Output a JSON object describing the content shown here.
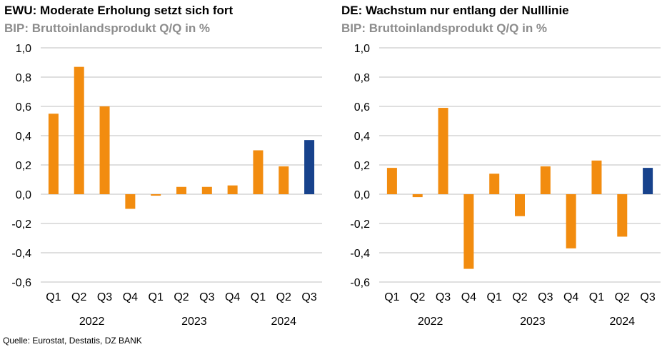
{
  "source": "Quelle: Eurostat, Destatis, DZ BANK",
  "colors": {
    "orange": "#F28C0F",
    "blue": "#17428C",
    "grid": "#BFBFBF"
  },
  "chart_data": [
    {
      "type": "bar",
      "title": "EWU: Moderate Erholung setzt sich fort",
      "subtitle": "BIP: Bruttoinlandsprodukt Q/Q in %",
      "categories": [
        "Q1",
        "Q2",
        "Q3",
        "Q4",
        "Q1",
        "Q2",
        "Q3",
        "Q4",
        "Q1",
        "Q2",
        "Q3"
      ],
      "years": [
        "2022",
        "2023",
        "2024"
      ],
      "values": [
        0.55,
        0.87,
        0.6,
        -0.1,
        -0.01,
        0.05,
        0.05,
        0.06,
        0.3,
        0.19,
        0.37
      ],
      "highlight_last": true,
      "ylim": [
        -0.6,
        1.0
      ],
      "yticks": [
        "1,0",
        "0,8",
        "0,6",
        "0,4",
        "0,2",
        "0,0",
        "-0,2",
        "-0,4",
        "-0,6"
      ],
      "grid": true
    },
    {
      "type": "bar",
      "title": "DE: Wachstum nur entlang der Nulllinie",
      "subtitle": "BIP: Bruttoinlandsprodukt Q/Q in %",
      "categories": [
        "Q1",
        "Q2",
        "Q3",
        "Q4",
        "Q1",
        "Q2",
        "Q3",
        "Q4",
        "Q1",
        "Q2",
        "Q3"
      ],
      "years": [
        "2022",
        "2023",
        "2024"
      ],
      "values": [
        0.18,
        -0.02,
        0.59,
        -0.51,
        0.14,
        -0.15,
        0.19,
        -0.37,
        0.23,
        -0.29,
        0.18
      ],
      "highlight_last": true,
      "ylim": [
        -0.6,
        1.0
      ],
      "yticks": [
        "1,0",
        "0,8",
        "0,6",
        "0,4",
        "0,2",
        "0,0",
        "-0,2",
        "-0,4",
        "-0,6"
      ],
      "grid": true
    }
  ]
}
